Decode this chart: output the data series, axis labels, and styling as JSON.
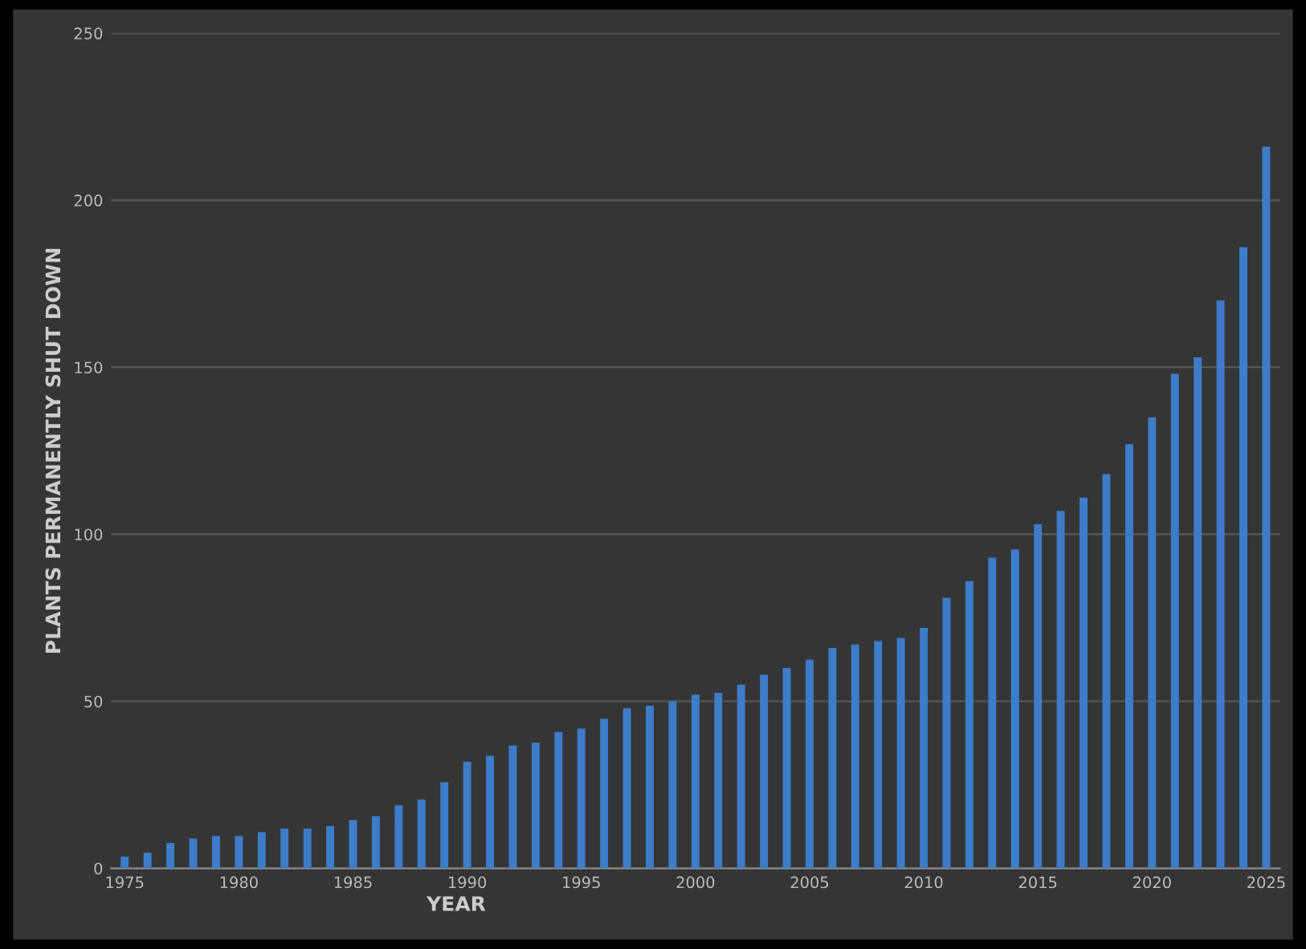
{
  "chart_data": {
    "type": "bar",
    "xlabel": "YEAR",
    "ylabel": "PLANTS PERMANENTLY SHUT DOWN",
    "categories": [
      "1975",
      null,
      null,
      null,
      null,
      "1980",
      null,
      null,
      null,
      null,
      "1985",
      null,
      null,
      null,
      null,
      "1990",
      null,
      null,
      null,
      null,
      "1995",
      null,
      null,
      null,
      null,
      "2000",
      null,
      null,
      null,
      null,
      "2005",
      null,
      null,
      null,
      null,
      "2010",
      null,
      null,
      null,
      null,
      "2015",
      null,
      null,
      null,
      null,
      "2020",
      null,
      null,
      null,
      null,
      "2025"
    ],
    "values": [
      3.5,
      4.7,
      7.6,
      8.9,
      9.7,
      9.7,
      10.8,
      11.9,
      11.9,
      12.7,
      14.5,
      15.6,
      18.9,
      20.6,
      25.8,
      31.9,
      33.7,
      36.8,
      37.6,
      40.8,
      41.8,
      44.8,
      47.9,
      48.7,
      50,
      52,
      52.5,
      55,
      58,
      60,
      62.5,
      66,
      67,
      68,
      69,
      72,
      81,
      86,
      93,
      95.5,
      103,
      107,
      111,
      118,
      127,
      135,
      148,
      153,
      170,
      186,
      216
    ],
    "color": "#3d7cc9",
    "ylim": [
      0,
      250
    ],
    "yticks": [
      0,
      50,
      100,
      150,
      200,
      250
    ],
    "grid": "y"
  }
}
